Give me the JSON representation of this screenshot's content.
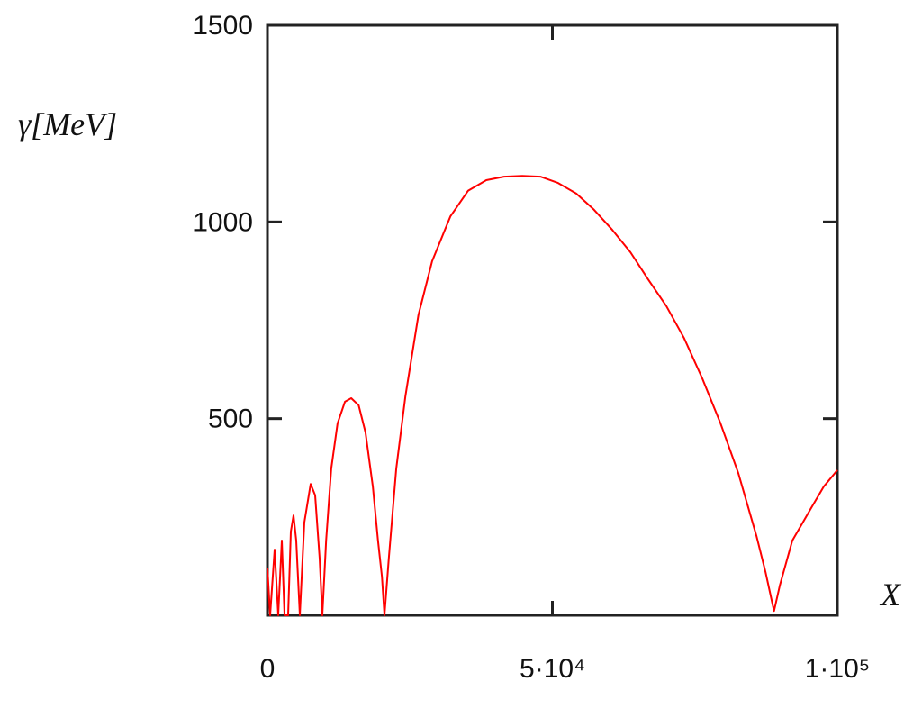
{
  "chart_data": {
    "type": "line",
    "xlabel": "X",
    "ylabel": "γ[MeV]",
    "xlim": [
      0,
      100000
    ],
    "ylim": [
      0,
      1500
    ],
    "xticks": [
      0,
      {
        "value": 50000,
        "label": "5·10⁴"
      },
      {
        "value": 100000,
        "label": "1·10⁵"
      }
    ],
    "yticks": [
      500,
      1000,
      1500
    ],
    "grid": false,
    "series": [
      {
        "color": "#ff0000",
        "x": [
          0,
          470,
          1260,
          1900,
          2530,
          3000,
          3630,
          4110,
          4580,
          5060,
          5690,
          6480,
          7580,
          8370,
          9160,
          9640,
          10300,
          11200,
          12300,
          13600,
          14700,
          16000,
          17200,
          18500,
          19400,
          20100,
          20540,
          21300,
          22600,
          24200,
          26500,
          28900,
          32100,
          35200,
          38400,
          41500,
          44700,
          47900,
          51000,
          54200,
          57300,
          60500,
          63700,
          66800,
          70000,
          73100,
          76300,
          79500,
          82600,
          85800,
          87400,
          88600,
          88900,
          89900,
          92100,
          95300,
          97600,
          100000
        ],
        "values": [
          121,
          0,
          167,
          0,
          190,
          0,
          0,
          213,
          254,
          190,
          0,
          236,
          334,
          305,
          144,
          0,
          190,
          373,
          488,
          543,
          552,
          534,
          465,
          327,
          190,
          98,
          0,
          144,
          373,
          556,
          763,
          900,
          1014,
          1079,
          1106,
          1115,
          1117,
          1115,
          1099,
          1072,
          1031,
          980,
          923,
          854,
          786,
          705,
          602,
          488,
          362,
          202,
          110,
          30,
          11,
          76,
          190,
          270,
          327,
          369
        ]
      }
    ]
  }
}
